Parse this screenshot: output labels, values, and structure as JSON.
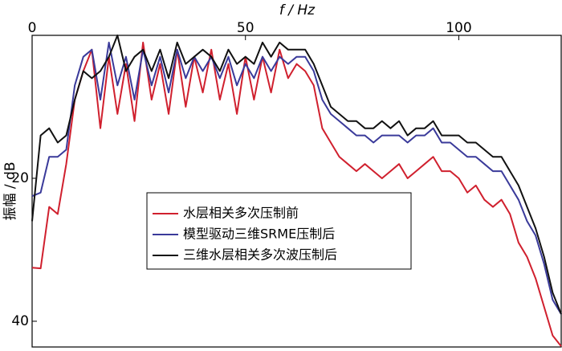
{
  "chart_data": {
    "type": "line",
    "x_label": "f / Hz",
    "y_label": "振幅 / dB",
    "x": [
      0,
      2,
      4,
      6,
      8,
      10,
      12,
      14,
      16,
      18,
      20,
      22,
      24,
      26,
      28,
      30,
      32,
      34,
      36,
      38,
      40,
      42,
      44,
      46,
      48,
      50,
      52,
      54,
      56,
      58,
      60,
      62,
      64,
      66,
      68,
      70,
      72,
      74,
      76,
      78,
      80,
      82,
      84,
      86,
      88,
      90,
      92,
      94,
      96,
      98,
      100,
      102,
      104,
      106,
      108,
      110,
      112,
      114,
      116,
      118,
      120,
      122,
      124
    ],
    "series": [
      {
        "name": "水层相关多次压制前",
        "color": "#d0202e",
        "values": [
          32.5,
          32.6,
          24,
          25,
          18,
          9,
          5,
          2,
          13,
          3,
          11,
          4,
          12,
          1,
          9,
          4,
          11,
          2,
          10,
          3,
          8,
          2,
          9,
          4,
          11,
          3,
          9,
          3,
          8,
          2,
          6,
          4,
          5,
          7,
          13,
          15,
          17,
          18,
          19,
          18,
          19,
          20,
          19,
          18,
          20,
          19,
          18,
          17,
          19,
          19,
          20,
          22,
          21,
          23,
          24,
          23,
          25,
          29,
          31,
          34,
          38,
          42,
          43.5
        ]
      },
      {
        "name": "模型驱动三维SRME压制后",
        "color": "#3a3a9a",
        "values": [
          22.5,
          22,
          17,
          17,
          16,
          7,
          3,
          2,
          9,
          1,
          7,
          3,
          9,
          2,
          7,
          3,
          8,
          2,
          6,
          3,
          5,
          3,
          6,
          3,
          7,
          4,
          6,
          3,
          5,
          3,
          4,
          3,
          3,
          5,
          9,
          11,
          12,
          13,
          14,
          14,
          15,
          14,
          14,
          14,
          15,
          14,
          14,
          13,
          15,
          15,
          16,
          17,
          17,
          18,
          19,
          19,
          21,
          23,
          26,
          28,
          32,
          37,
          39
        ]
      },
      {
        "name": "三维水层相关多次波压制后",
        "color": "#111111",
        "values": [
          26,
          14,
          13,
          15,
          14,
          9,
          5,
          6,
          5,
          3,
          0,
          5,
          3,
          2,
          5,
          2,
          6,
          1,
          4,
          3,
          2,
          3,
          5,
          2,
          4,
          3,
          4,
          1,
          3,
          1,
          2,
          2,
          2,
          4,
          7,
          10,
          11,
          12,
          12,
          13,
          13,
          12,
          13,
          12,
          14,
          13,
          13,
          12,
          14,
          14,
          14,
          15,
          15,
          16,
          17,
          17,
          19,
          21,
          24,
          27,
          31,
          36,
          39
        ]
      }
    ],
    "xlim": [
      0,
      124
    ],
    "xticks": [
      0,
      50,
      100
    ],
    "ylim": [
      43.6,
      0
    ],
    "yticks": [
      20,
      40
    ]
  }
}
